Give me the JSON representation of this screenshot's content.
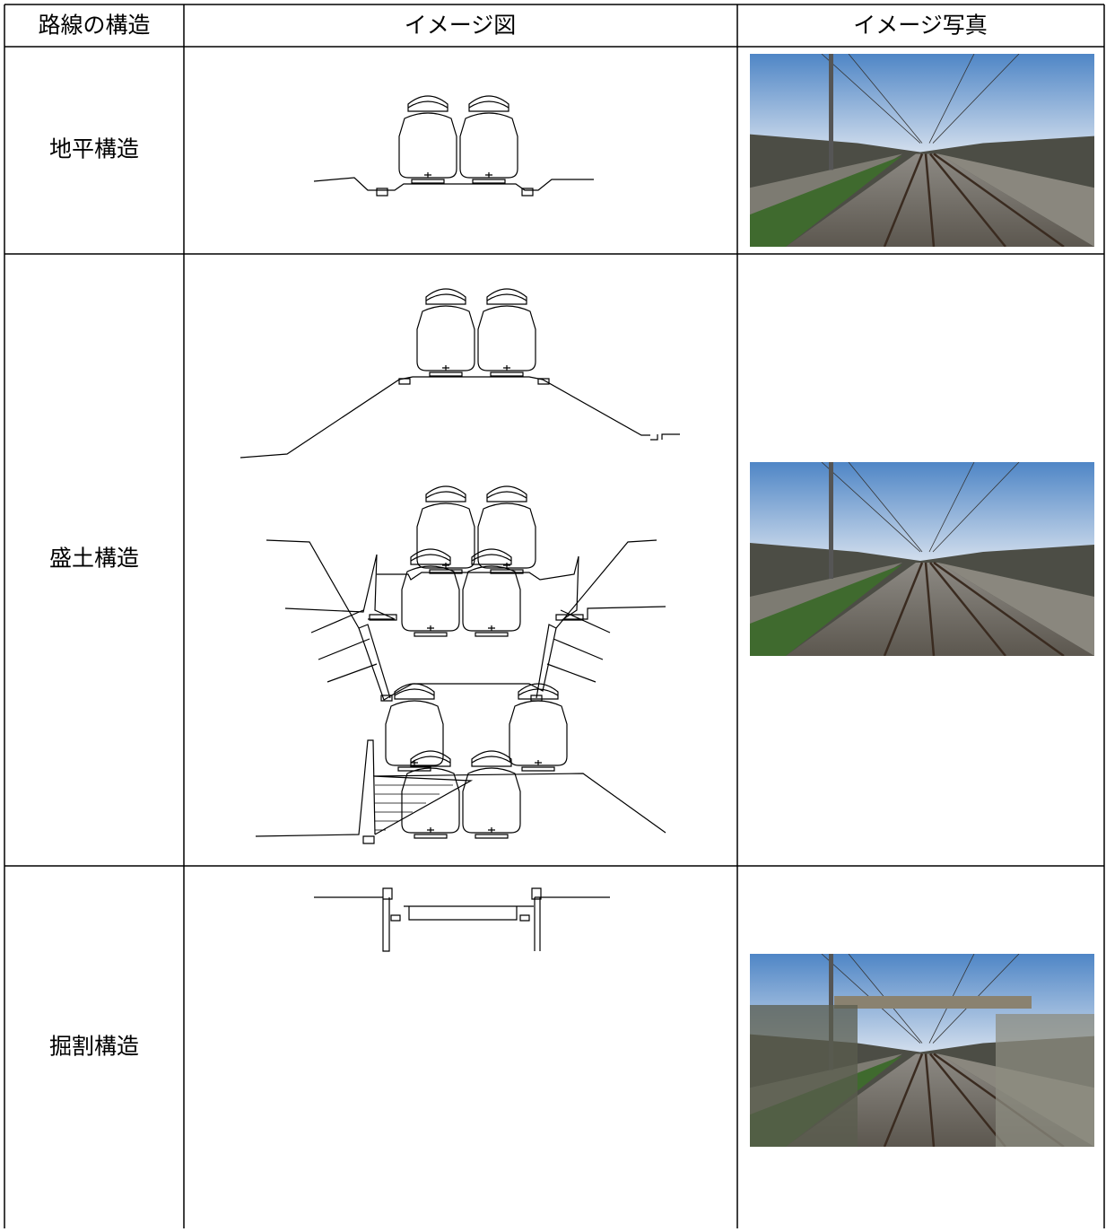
{
  "table": {
    "header": [
      "路線の構造",
      "イメージ図",
      "イメージ写真"
    ],
    "rows": [
      [
        "地平構造"
      ],
      [
        "盛土構造"
      ],
      [
        "掘割構造"
      ]
    ]
  }
}
